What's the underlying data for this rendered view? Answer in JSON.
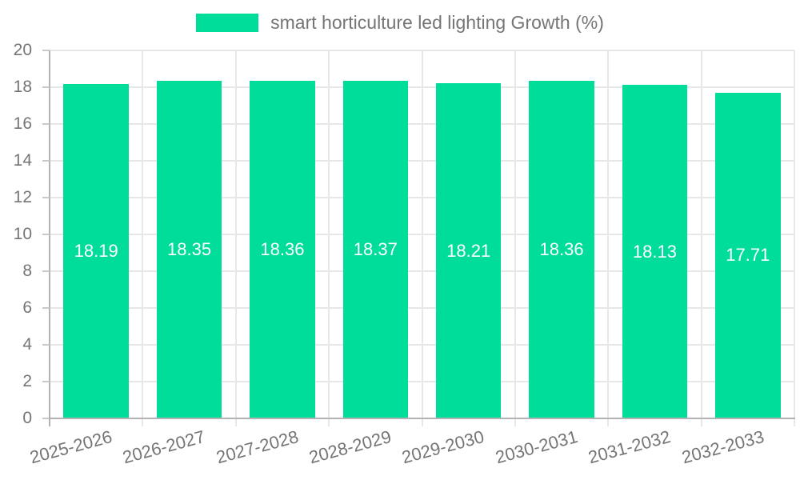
{
  "chart_data": {
    "type": "bar",
    "title": "",
    "legend": "smart horticulture led lighting Growth (%)",
    "legend_position": "top-center",
    "categories": [
      "2025-2026",
      "2026-2027",
      "2027-2028",
      "2028-2029",
      "2029-2030",
      "2030-2031",
      "2031-2032",
      "2032-2033"
    ],
    "values": [
      18.19,
      18.35,
      18.36,
      18.37,
      18.21,
      18.36,
      18.13,
      17.71
    ],
    "value_label_decimals": 2,
    "xlabel": "",
    "ylabel": "",
    "ylim": [
      0,
      20
    ],
    "ytick_step": 2,
    "grid": true,
    "x_label_rotation_deg": -15,
    "colors": {
      "bar": "#00DC9A",
      "value_label": "#ffffff",
      "axis_text": "#757575",
      "grid_line": "#e7e7e7",
      "axis_line": "#b3b3b3",
      "tick_mark": "#c9c9c9",
      "background": "#ffffff"
    }
  }
}
